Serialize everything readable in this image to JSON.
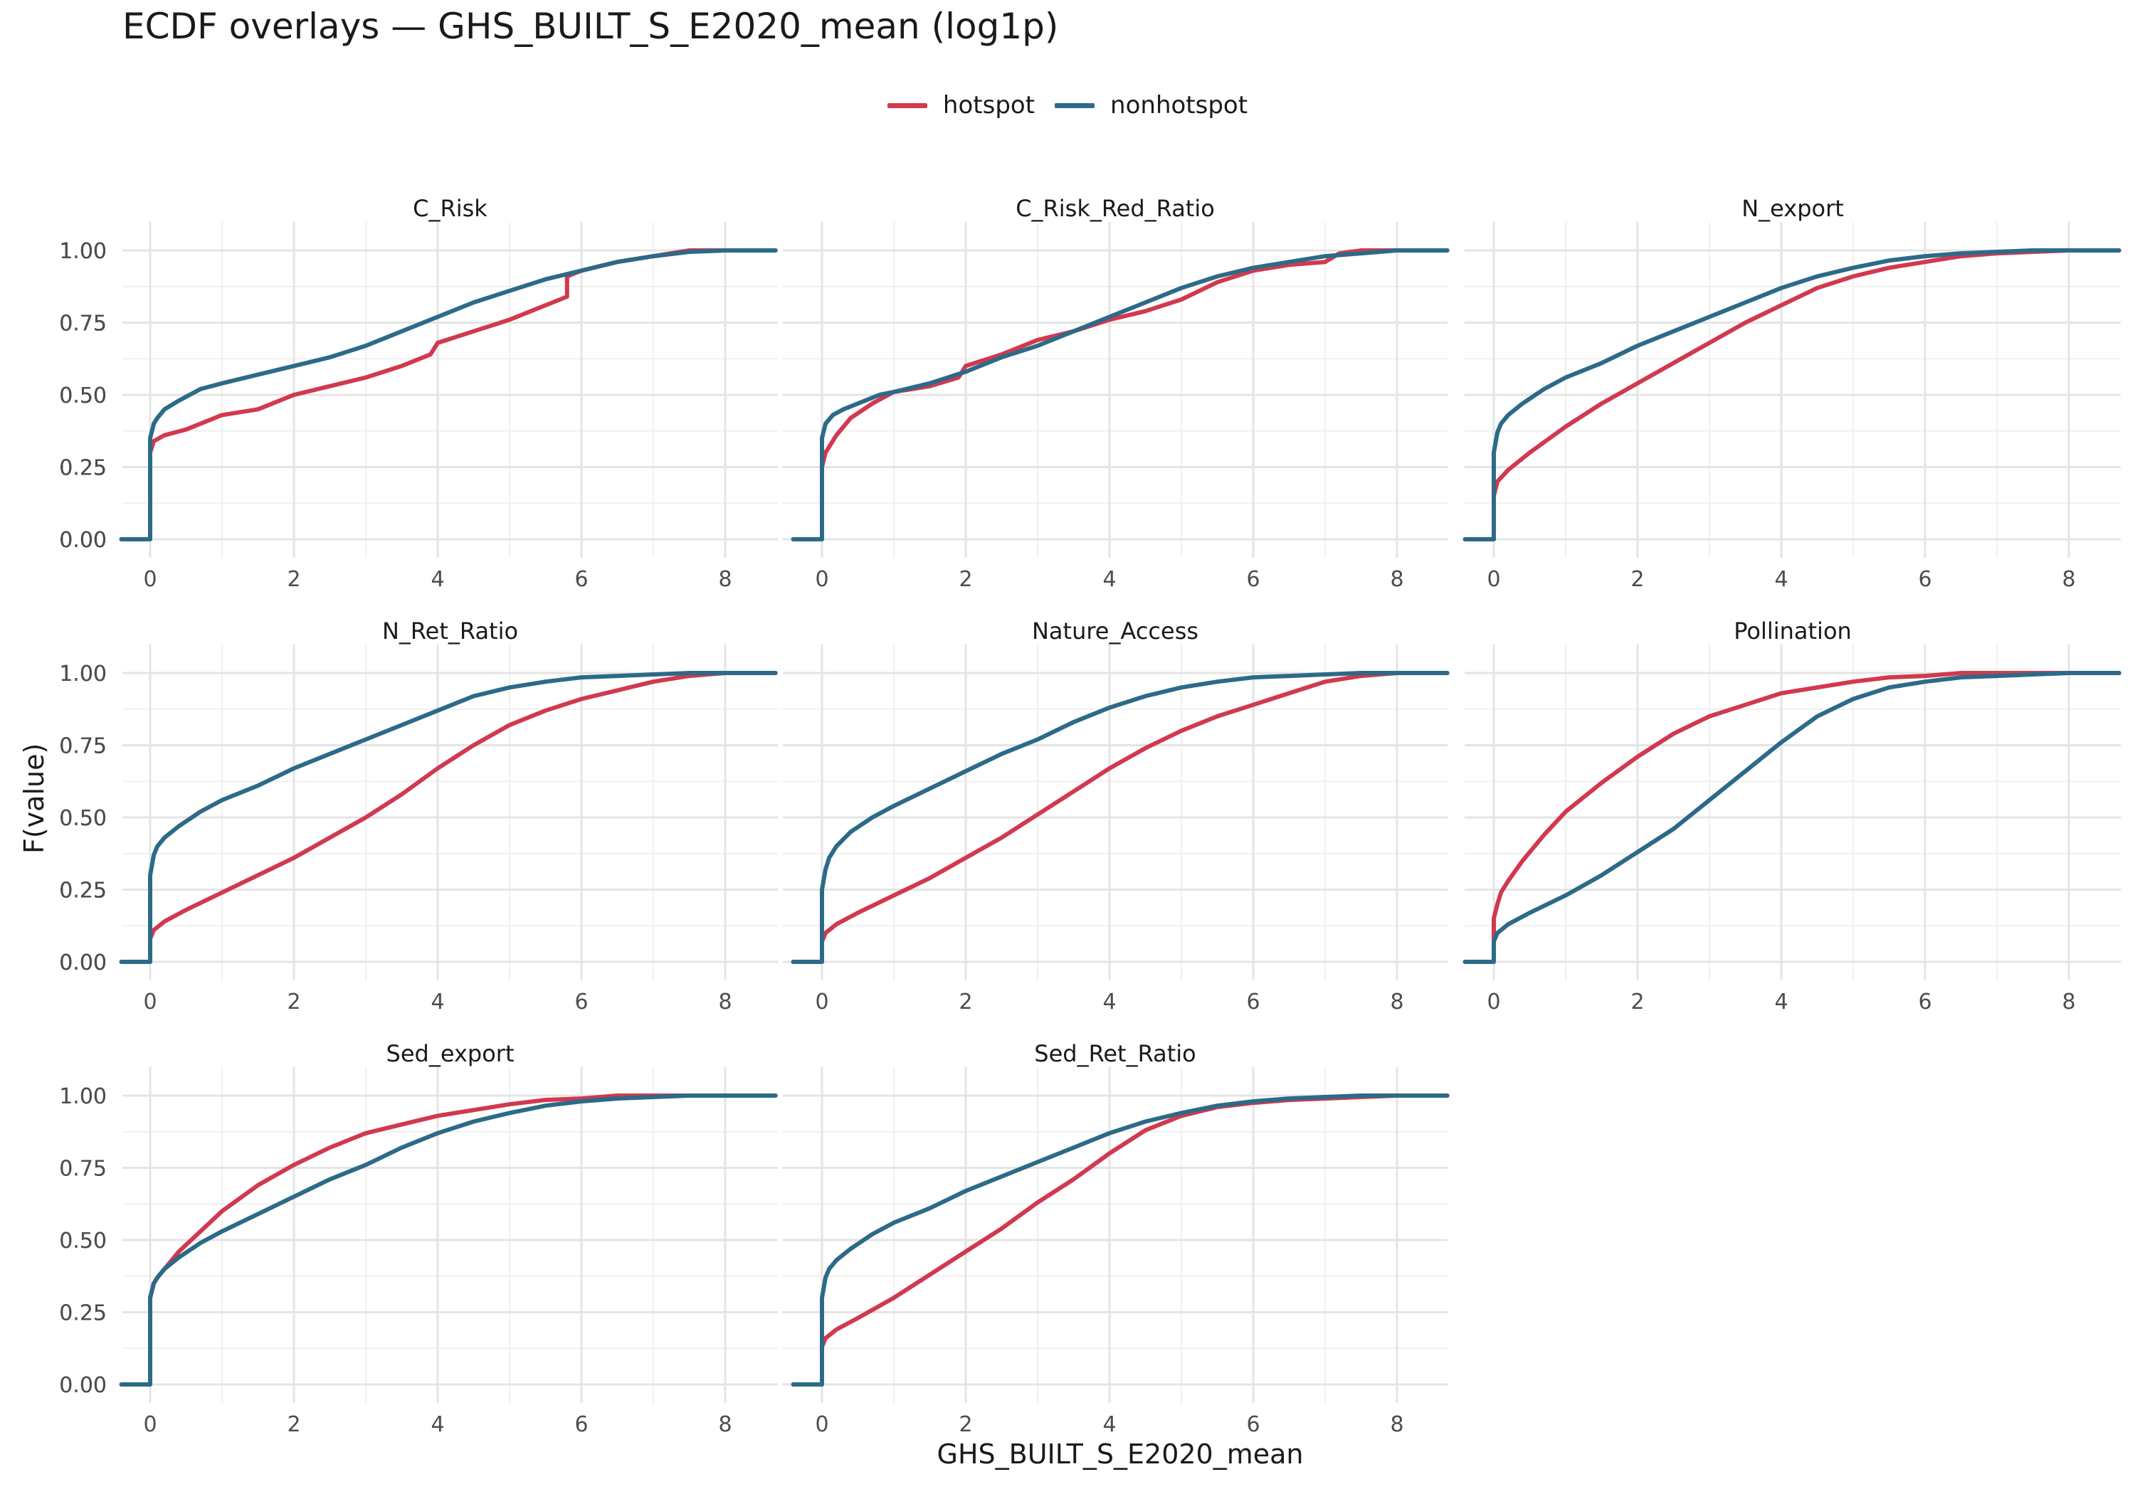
{
  "title": "ECDF overlays — GHS_BUILT_S_E2020_mean (log1p)",
  "xlabel": "GHS_BUILT_S_E2020_mean",
  "ylabel": "F(value)",
  "legend": [
    {
      "name": "hotspot",
      "color": "#D1394F"
    },
    {
      "name": "nonhotspot",
      "color": "#2C6A88"
    }
  ],
  "chart_data": {
    "type": "line",
    "title": "ECDF overlays — GHS_BUILT_S_E2020_mean (log1p)",
    "xlabel": "GHS_BUILT_S_E2020_mean",
    "ylabel": "F(value)",
    "xlim": [
      -0.4,
      8.7
    ],
    "ylim": [
      0,
      1
    ],
    "x_ticks": [
      "0",
      "2",
      "4",
      "6",
      "8"
    ],
    "y_ticks": [
      "0.00",
      "0.25",
      "0.50",
      "0.75",
      "1.00"
    ],
    "grid": true,
    "legend_position": "top",
    "facets": [
      {
        "name": "C_Risk",
        "series": [
          {
            "name": "hotspot",
            "x": [
              -0.4,
              0,
              0,
              0.05,
              0.2,
              0.5,
              1,
              1.5,
              2,
              2.5,
              3,
              3.5,
              3.9,
              4,
              4.5,
              5,
              5.5,
              5.8,
              5.8,
              6,
              6.5,
              7,
              7.5,
              8,
              8.7
            ],
            "y": [
              0,
              0,
              0.3,
              0.34,
              0.36,
              0.38,
              0.43,
              0.45,
              0.5,
              0.53,
              0.56,
              0.6,
              0.64,
              0.68,
              0.72,
              0.76,
              0.81,
              0.84,
              0.91,
              0.93,
              0.96,
              0.98,
              1.0,
              1.0,
              1.0
            ]
          },
          {
            "name": "nonhotspot",
            "x": [
              -0.4,
              0,
              0,
              0.05,
              0.1,
              0.2,
              0.4,
              0.7,
              1,
              1.5,
              2,
              2.5,
              3,
              3.5,
              4,
              4.5,
              5,
              5.5,
              6,
              6.5,
              7,
              7.5,
              8,
              8.7
            ],
            "y": [
              0,
              0,
              0.35,
              0.4,
              0.42,
              0.45,
              0.48,
              0.52,
              0.54,
              0.57,
              0.6,
              0.63,
              0.67,
              0.72,
              0.77,
              0.82,
              0.86,
              0.9,
              0.93,
              0.96,
              0.98,
              0.995,
              1.0,
              1.0
            ]
          }
        ]
      },
      {
        "name": "C_Risk_Red_Ratio",
        "series": [
          {
            "name": "hotspot",
            "x": [
              -0.4,
              0,
              0,
              0.05,
              0.2,
              0.4,
              0.7,
              1,
              1.5,
              1.9,
              2,
              2.5,
              3,
              3.5,
              4,
              4.5,
              5,
              5.5,
              6,
              6.5,
              7,
              7.2,
              7.5,
              8,
              8.7
            ],
            "y": [
              0,
              0,
              0.25,
              0.3,
              0.36,
              0.42,
              0.47,
              0.51,
              0.53,
              0.56,
              0.6,
              0.64,
              0.69,
              0.72,
              0.76,
              0.79,
              0.83,
              0.89,
              0.93,
              0.95,
              0.96,
              0.99,
              1.0,
              1.0,
              1.0
            ]
          },
          {
            "name": "nonhotspot",
            "x": [
              -0.4,
              0,
              0,
              0.05,
              0.15,
              0.3,
              0.5,
              0.8,
              1,
              1.5,
              2,
              2.5,
              3,
              3.5,
              4,
              4.5,
              5,
              5.5,
              6,
              6.5,
              7,
              7.5,
              8,
              8.7
            ],
            "y": [
              0,
              0,
              0.35,
              0.4,
              0.43,
              0.45,
              0.47,
              0.5,
              0.51,
              0.54,
              0.58,
              0.63,
              0.67,
              0.72,
              0.77,
              0.82,
              0.87,
              0.91,
              0.94,
              0.96,
              0.98,
              0.99,
              1.0,
              1.0
            ]
          }
        ]
      },
      {
        "name": "N_export",
        "series": [
          {
            "name": "hotspot",
            "x": [
              -0.4,
              0,
              0,
              0.05,
              0.2,
              0.5,
              1,
              1.5,
              2,
              2.5,
              3,
              3.5,
              4,
              4.5,
              5,
              5.5,
              6,
              6.5,
              7,
              7.5,
              8,
              8.7
            ],
            "y": [
              0,
              0,
              0.15,
              0.2,
              0.24,
              0.3,
              0.39,
              0.47,
              0.54,
              0.61,
              0.68,
              0.75,
              0.81,
              0.87,
              0.91,
              0.94,
              0.96,
              0.98,
              0.99,
              0.995,
              1.0,
              1.0
            ]
          },
          {
            "name": "nonhotspot",
            "x": [
              -0.4,
              0,
              0,
              0.05,
              0.1,
              0.2,
              0.4,
              0.7,
              1,
              1.5,
              2,
              2.5,
              3,
              3.5,
              4,
              4.5,
              5,
              5.5,
              6,
              6.5,
              7,
              7.5,
              8,
              8.7
            ],
            "y": [
              0,
              0,
              0.3,
              0.37,
              0.4,
              0.43,
              0.47,
              0.52,
              0.56,
              0.61,
              0.67,
              0.72,
              0.77,
              0.82,
              0.87,
              0.91,
              0.94,
              0.965,
              0.98,
              0.99,
              0.995,
              1.0,
              1.0,
              1.0
            ]
          }
        ]
      },
      {
        "name": "N_Ret_Ratio",
        "series": [
          {
            "name": "hotspot",
            "x": [
              -0.4,
              0,
              0,
              0.05,
              0.2,
              0.5,
              1,
              1.5,
              2,
              2.5,
              3,
              3.5,
              4,
              4.5,
              5,
              5.5,
              6,
              6.5,
              7,
              7.5,
              8,
              8.7
            ],
            "y": [
              0,
              0,
              0.08,
              0.11,
              0.14,
              0.18,
              0.24,
              0.3,
              0.36,
              0.43,
              0.5,
              0.58,
              0.67,
              0.75,
              0.82,
              0.87,
              0.91,
              0.94,
              0.97,
              0.99,
              1.0,
              1.0
            ]
          },
          {
            "name": "nonhotspot",
            "x": [
              -0.4,
              0,
              0,
              0.05,
              0.1,
              0.2,
              0.4,
              0.7,
              1,
              1.5,
              2,
              2.5,
              3,
              3.5,
              4,
              4.5,
              5,
              5.5,
              6,
              6.5,
              7,
              7.5,
              8,
              8.7
            ],
            "y": [
              0,
              0,
              0.3,
              0.37,
              0.4,
              0.43,
              0.47,
              0.52,
              0.56,
              0.61,
              0.67,
              0.72,
              0.77,
              0.82,
              0.87,
              0.92,
              0.95,
              0.97,
              0.985,
              0.99,
              0.995,
              1.0,
              1.0,
              1.0
            ]
          }
        ]
      },
      {
        "name": "Nature_Access",
        "series": [
          {
            "name": "hotspot",
            "x": [
              -0.4,
              0,
              0,
              0.05,
              0.2,
              0.5,
              1,
              1.5,
              2,
              2.5,
              3,
              3.5,
              4,
              4.5,
              5,
              5.5,
              6,
              6.5,
              7,
              7.5,
              8,
              8.7
            ],
            "y": [
              0,
              0,
              0.07,
              0.1,
              0.13,
              0.17,
              0.23,
              0.29,
              0.36,
              0.43,
              0.51,
              0.59,
              0.67,
              0.74,
              0.8,
              0.85,
              0.89,
              0.93,
              0.97,
              0.99,
              1.0,
              1.0
            ]
          },
          {
            "name": "nonhotspot",
            "x": [
              -0.4,
              0,
              0,
              0.05,
              0.1,
              0.2,
              0.4,
              0.7,
              1,
              1.5,
              2,
              2.5,
              3,
              3.5,
              4,
              4.5,
              5,
              5.5,
              6,
              6.5,
              7,
              7.5,
              8,
              8.7
            ],
            "y": [
              0,
              0,
              0.25,
              0.32,
              0.36,
              0.4,
              0.45,
              0.5,
              0.54,
              0.6,
              0.66,
              0.72,
              0.77,
              0.83,
              0.88,
              0.92,
              0.95,
              0.97,
              0.985,
              0.99,
              0.995,
              1.0,
              1.0,
              1.0
            ]
          }
        ]
      },
      {
        "name": "Pollination",
        "series": [
          {
            "name": "hotspot",
            "x": [
              -0.4,
              0,
              0,
              0.05,
              0.1,
              0.2,
              0.4,
              0.7,
              1,
              1.5,
              2,
              2.5,
              3,
              3.5,
              4,
              4.5,
              5,
              5.5,
              6,
              6.5,
              7,
              8,
              8.7
            ],
            "y": [
              0,
              0,
              0.15,
              0.2,
              0.24,
              0.28,
              0.35,
              0.44,
              0.52,
              0.62,
              0.71,
              0.79,
              0.85,
              0.89,
              0.93,
              0.95,
              0.97,
              0.985,
              0.99,
              1.0,
              1.0,
              1.0,
              1.0
            ]
          },
          {
            "name": "nonhotspot",
            "x": [
              -0.4,
              0,
              0,
              0.05,
              0.2,
              0.5,
              1,
              1.5,
              2,
              2.5,
              3,
              3.5,
              4,
              4.5,
              5,
              5.5,
              6,
              6.5,
              7,
              7.5,
              8,
              8.7
            ],
            "y": [
              0,
              0,
              0.07,
              0.1,
              0.13,
              0.17,
              0.23,
              0.3,
              0.38,
              0.46,
              0.56,
              0.66,
              0.76,
              0.85,
              0.91,
              0.95,
              0.97,
              0.985,
              0.99,
              0.995,
              1.0,
              1.0
            ]
          }
        ]
      },
      {
        "name": "Sed_export",
        "series": [
          {
            "name": "hotspot",
            "x": [
              -0.4,
              0,
              0,
              0.05,
              0.1,
              0.2,
              0.4,
              0.7,
              1,
              1.5,
              2,
              2.5,
              3,
              3.5,
              4,
              4.5,
              5,
              5.5,
              6,
              6.5,
              7,
              8,
              8.7
            ],
            "y": [
              0,
              0,
              0.3,
              0.35,
              0.37,
              0.4,
              0.46,
              0.53,
              0.6,
              0.69,
              0.76,
              0.82,
              0.87,
              0.9,
              0.93,
              0.95,
              0.97,
              0.985,
              0.99,
              1.0,
              1.0,
              1.0,
              1.0
            ]
          },
          {
            "name": "nonhotspot",
            "x": [
              -0.4,
              0,
              0,
              0.05,
              0.1,
              0.2,
              0.4,
              0.7,
              1,
              1.5,
              2,
              2.5,
              3,
              3.5,
              4,
              4.5,
              5,
              5.5,
              6,
              6.5,
              7,
              7.5,
              8,
              8.7
            ],
            "y": [
              0,
              0,
              0.3,
              0.35,
              0.37,
              0.4,
              0.44,
              0.49,
              0.53,
              0.59,
              0.65,
              0.71,
              0.76,
              0.82,
              0.87,
              0.91,
              0.94,
              0.965,
              0.98,
              0.99,
              0.995,
              1.0,
              1.0,
              1.0
            ]
          }
        ]
      },
      {
        "name": "Sed_Ret_Ratio",
        "series": [
          {
            "name": "hotspot",
            "x": [
              -0.4,
              0,
              0,
              0.05,
              0.2,
              0.5,
              1,
              1.5,
              2,
              2.5,
              3,
              3.5,
              4,
              4.5,
              5,
              5.5,
              6,
              6.5,
              7,
              7.5,
              8,
              8.7
            ],
            "y": [
              0,
              0,
              0.13,
              0.16,
              0.19,
              0.23,
              0.3,
              0.38,
              0.46,
              0.54,
              0.63,
              0.71,
              0.8,
              0.88,
              0.93,
              0.96,
              0.975,
              0.985,
              0.99,
              0.995,
              1.0,
              1.0
            ]
          },
          {
            "name": "nonhotspot",
            "x": [
              -0.4,
              0,
              0,
              0.05,
              0.1,
              0.2,
              0.4,
              0.7,
              1,
              1.5,
              2,
              2.5,
              3,
              3.5,
              4,
              4.5,
              5,
              5.5,
              6,
              6.5,
              7,
              7.5,
              8,
              8.7
            ],
            "y": [
              0,
              0,
              0.3,
              0.37,
              0.4,
              0.43,
              0.47,
              0.52,
              0.56,
              0.61,
              0.67,
              0.72,
              0.77,
              0.82,
              0.87,
              0.91,
              0.94,
              0.965,
              0.98,
              0.99,
              0.995,
              1.0,
              1.0,
              1.0
            ]
          }
        ]
      }
    ]
  }
}
